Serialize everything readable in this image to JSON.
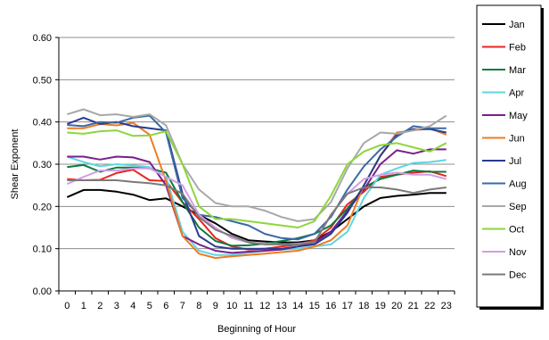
{
  "chart_data": {
    "type": "line",
    "title": "",
    "xlabel": "Beginning of Hour",
    "ylabel": "Shear Exponent",
    "x": [
      0,
      1,
      2,
      3,
      4,
      5,
      6,
      7,
      8,
      9,
      10,
      11,
      12,
      13,
      14,
      15,
      16,
      17,
      18,
      19,
      20,
      21,
      22,
      23
    ],
    "ylim": [
      0,
      0.6
    ],
    "yticks": [
      "0.00",
      "0.10",
      "0.20",
      "0.30",
      "0.40",
      "0.50",
      "0.60"
    ],
    "grid": "horizontal",
    "legend_position": "right",
    "series": [
      {
        "name": "Jan",
        "color": "#000000",
        "values": [
          0.222,
          0.239,
          0.239,
          0.235,
          0.228,
          0.215,
          0.219,
          0.2,
          0.18,
          0.16,
          0.135,
          0.12,
          0.117,
          0.115,
          0.115,
          0.12,
          0.14,
          0.17,
          0.2,
          0.22,
          0.225,
          0.228,
          0.232,
          0.232
        ]
      },
      {
        "name": "Feb",
        "color": "#e8251f",
        "values": [
          0.265,
          0.262,
          0.263,
          0.279,
          0.287,
          0.262,
          0.26,
          0.21,
          0.17,
          0.125,
          0.105,
          0.098,
          0.1,
          0.105,
          0.11,
          0.12,
          0.15,
          0.205,
          0.235,
          0.27,
          0.275,
          0.28,
          0.283,
          0.272
        ]
      },
      {
        "name": "Mar",
        "color": "#0a7a3c",
        "values": [
          0.293,
          0.298,
          0.282,
          0.292,
          0.292,
          0.29,
          0.28,
          0.21,
          0.15,
          0.118,
          0.107,
          0.108,
          0.112,
          0.118,
          0.125,
          0.135,
          0.155,
          0.195,
          0.245,
          0.265,
          0.275,
          0.285,
          0.282,
          0.282
        ]
      },
      {
        "name": "Apr",
        "color": "#5fd6e0",
        "values": [
          0.318,
          0.305,
          0.295,
          0.3,
          0.297,
          0.293,
          0.27,
          0.14,
          0.095,
          0.085,
          0.085,
          0.09,
          0.095,
          0.098,
          0.1,
          0.105,
          0.11,
          0.14,
          0.22,
          0.275,
          0.29,
          0.303,
          0.305,
          0.31
        ]
      },
      {
        "name": "May",
        "color": "#7a1f8c",
        "values": [
          0.318,
          0.318,
          0.311,
          0.318,
          0.316,
          0.305,
          0.25,
          0.13,
          0.11,
          0.095,
          0.09,
          0.093,
          0.095,
          0.098,
          0.105,
          0.115,
          0.14,
          0.19,
          0.24,
          0.3,
          0.333,
          0.325,
          0.335,
          0.335
        ]
      },
      {
        "name": "Jun",
        "color": "#ee7b22",
        "values": [
          0.385,
          0.385,
          0.395,
          0.392,
          0.398,
          0.37,
          0.26,
          0.13,
          0.088,
          0.078,
          0.082,
          0.085,
          0.088,
          0.092,
          0.095,
          0.105,
          0.12,
          0.155,
          0.25,
          0.32,
          0.375,
          0.38,
          0.385,
          0.37
        ]
      },
      {
        "name": "Jul",
        "color": "#2a3a8f",
        "values": [
          0.395,
          0.41,
          0.395,
          0.4,
          0.39,
          0.385,
          0.38,
          0.23,
          0.13,
          0.105,
          0.1,
          0.1,
          0.1,
          0.1,
          0.105,
          0.11,
          0.135,
          0.185,
          0.25,
          0.32,
          0.37,
          0.383,
          0.383,
          0.375
        ]
      },
      {
        "name": "Aug",
        "color": "#3a6aa5",
        "values": [
          0.393,
          0.39,
          0.4,
          0.398,
          0.41,
          0.415,
          0.375,
          0.22,
          0.18,
          0.175,
          0.165,
          0.155,
          0.135,
          0.125,
          0.122,
          0.135,
          0.175,
          0.24,
          0.295,
          0.335,
          0.365,
          0.39,
          0.385,
          0.385
        ]
      },
      {
        "name": "Sep",
        "color": "#a8a8a8",
        "values": [
          0.418,
          0.43,
          0.416,
          0.418,
          0.412,
          0.418,
          0.392,
          0.3,
          0.24,
          0.208,
          0.2,
          0.2,
          0.19,
          0.175,
          0.165,
          0.17,
          0.21,
          0.29,
          0.35,
          0.375,
          0.372,
          0.38,
          0.39,
          0.415
        ]
      },
      {
        "name": "Oct",
        "color": "#8ed63c",
        "values": [
          0.375,
          0.372,
          0.378,
          0.38,
          0.367,
          0.368,
          0.378,
          0.3,
          0.2,
          0.17,
          0.17,
          0.165,
          0.16,
          0.155,
          0.15,
          0.165,
          0.225,
          0.3,
          0.33,
          0.345,
          0.35,
          0.34,
          0.33,
          0.35
        ]
      },
      {
        "name": "Nov",
        "color": "#d29ee6",
        "values": [
          0.253,
          0.27,
          0.285,
          0.285,
          0.29,
          0.29,
          0.27,
          0.25,
          0.18,
          0.15,
          0.125,
          0.115,
          0.112,
          0.11,
          0.112,
          0.115,
          0.18,
          0.23,
          0.265,
          0.275,
          0.28,
          0.275,
          0.275,
          0.265
        ]
      },
      {
        "name": "Dec",
        "color": "#7a7a7a",
        "values": [
          0.262,
          0.262,
          0.262,
          0.262,
          0.258,
          0.255,
          0.25,
          0.23,
          0.175,
          0.145,
          0.13,
          0.115,
          0.11,
          0.11,
          0.11,
          0.115,
          0.18,
          0.23,
          0.245,
          0.245,
          0.24,
          0.232,
          0.24,
          0.245
        ]
      }
    ]
  }
}
